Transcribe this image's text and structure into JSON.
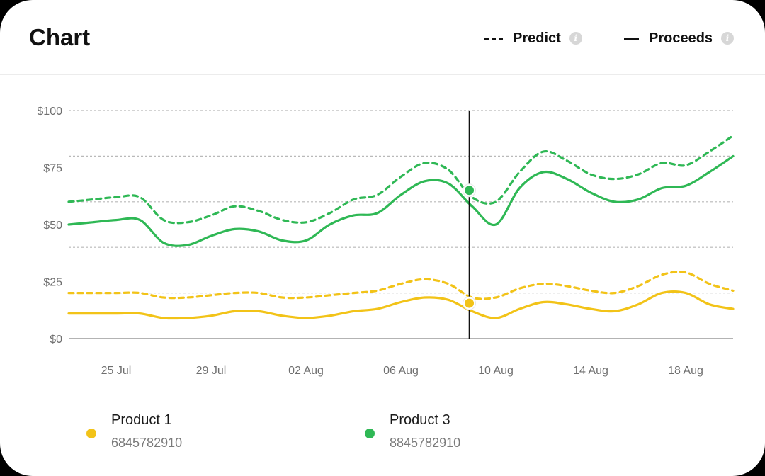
{
  "header": {
    "title": "Chart",
    "legend": {
      "predict_label": "Predict",
      "proceeds_label": "Proceeds",
      "info_glyph": "i"
    }
  },
  "series_legend": [
    {
      "name": "Product 1",
      "code": "6845782910",
      "color": "#f2c318"
    },
    {
      "name": "Product 3",
      "code": "8845782910",
      "color": "#2fb855"
    }
  ],
  "chart_data": {
    "type": "line",
    "x": [
      "23 Jul",
      "24 Jul",
      "25 Jul",
      "26 Jul",
      "27 Jul",
      "28 Jul",
      "29 Jul",
      "30 Jul",
      "31 Jul",
      "01 Aug",
      "02 Aug",
      "03 Aug",
      "04 Aug",
      "05 Aug",
      "06 Aug",
      "07 Aug",
      "08 Aug",
      "09 Aug",
      "10 Aug",
      "11 Aug",
      "12 Aug",
      "13 Aug",
      "14 Aug",
      "15 Aug",
      "16 Aug",
      "17 Aug",
      "18 Aug",
      "19 Aug",
      "20 Aug"
    ],
    "x_tick_labels": [
      "25 Jul",
      "29 Jul",
      "02 Aug",
      "06 Aug",
      "10 Aug",
      "14 Aug",
      "18 Aug"
    ],
    "y_tick_labels": [
      "$0",
      "$25",
      "$50",
      "$75",
      "$100"
    ],
    "ylim": [
      0,
      100
    ],
    "grid": true,
    "legend_position": "top-right",
    "highlight_x": "09 Aug",
    "series": [
      {
        "name": "Product 3",
        "style": "dashed",
        "color": "#2fb855",
        "values": [
          60,
          61,
          62,
          62,
          52,
          51,
          54,
          58,
          56,
          52,
          51,
          55,
          61,
          63,
          71,
          77,
          74,
          62,
          60,
          73,
          82,
          78,
          72,
          70,
          72,
          77,
          76,
          82,
          89
        ]
      },
      {
        "name": "Product 3",
        "style": "solid",
        "color": "#2fb855",
        "values": [
          50,
          51,
          52,
          52,
          42,
          41,
          45,
          48,
          47,
          43,
          43,
          50,
          54,
          55,
          63,
          69,
          68,
          58,
          50,
          66,
          73,
          70,
          64,
          60,
          61,
          66,
          67,
          73,
          80
        ]
      },
      {
        "name": "Product 1",
        "style": "dashed",
        "color": "#f2c318",
        "values": [
          20,
          20,
          20,
          20,
          18,
          18,
          19,
          20,
          20,
          18,
          18,
          19,
          20,
          21,
          24,
          26,
          24,
          18,
          18,
          22,
          24,
          23,
          21,
          20,
          23,
          28,
          29,
          24,
          21
        ]
      },
      {
        "name": "Product 1",
        "style": "solid",
        "color": "#f2c318",
        "values": [
          11,
          11,
          11,
          11,
          9,
          9,
          10,
          12,
          12,
          10,
          9,
          10,
          12,
          13,
          16,
          18,
          17,
          12,
          9,
          13,
          16,
          15,
          13,
          12,
          15,
          20,
          20,
          15,
          13
        ]
      }
    ]
  }
}
